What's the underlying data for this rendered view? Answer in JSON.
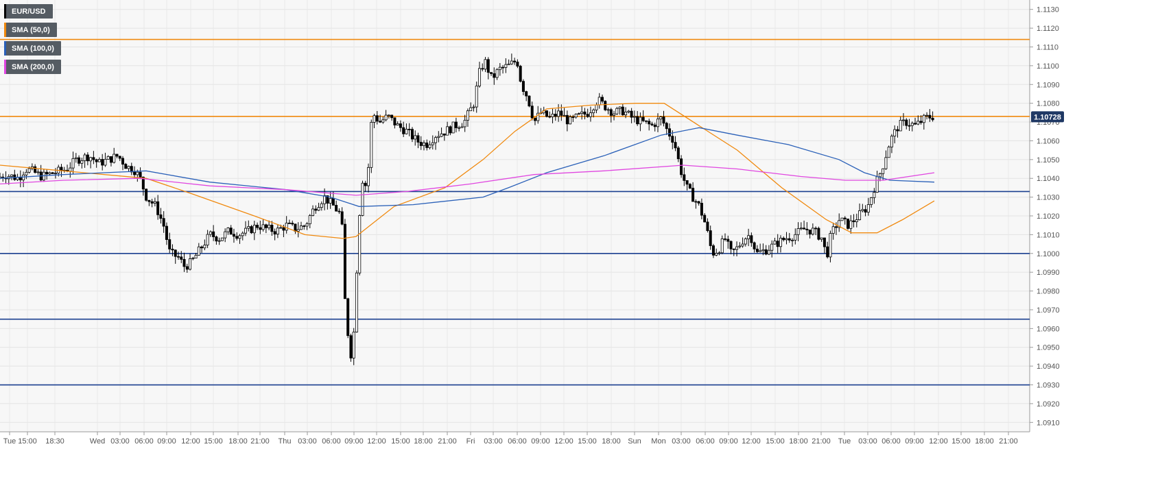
{
  "chart_data": {
    "type": "candlestick",
    "symbol": "EUR/USD",
    "ylim": [
      1.0905,
      1.1135
    ],
    "y_ticks": [
      "1.0910",
      "1.0920",
      "1.0930",
      "1.0940",
      "1.0950",
      "1.0960",
      "1.0970",
      "1.0980",
      "1.0990",
      "1.1000",
      "1.1010",
      "1.1020",
      "1.1030",
      "1.1040",
      "1.1050",
      "1.1060",
      "1.1070",
      "1.1080",
      "1.1090",
      "1.1100",
      "1.1110",
      "1.1120",
      "1.1130"
    ],
    "x_ticks": [
      "Tue",
      "15:00",
      "18:30",
      "Wed",
      "03:00",
      "06:00",
      "09:00",
      "12:00",
      "15:00",
      "18:00",
      "21:00",
      "Thu",
      "03:00",
      "06:00",
      "09:00",
      "12:00",
      "15:00",
      "18:00",
      "21:00",
      "Fri",
      "03:00",
      "06:00",
      "09:00",
      "12:00",
      "15:00",
      "18:00",
      "Sun",
      "Mon",
      "03:00",
      "06:00",
      "09:00",
      "12:00",
      "15:00",
      "18:00",
      "21:00",
      "Tue",
      "03:00",
      "06:00",
      "09:00",
      "12:00",
      "15:00",
      "18:00",
      "21:00"
    ],
    "current_price": "1.10728",
    "current_price_value": 1.10728,
    "horizontal_levels": [
      {
        "value": 1.1114,
        "color": "#f0890e"
      },
      {
        "value": 1.1073,
        "color": "#f0890e"
      },
      {
        "value": 1.1033,
        "color": "#1a3f8f"
      },
      {
        "value": 1.1,
        "color": "#1a3f8f"
      },
      {
        "value": 1.0965,
        "color": "#1a3f8f"
      },
      {
        "value": 1.093,
        "color": "#1a3f8f"
      }
    ],
    "price_path": [
      [
        0,
        1.104
      ],
      [
        12,
        1.1042
      ],
      [
        24,
        1.1041
      ],
      [
        34,
        1.104
      ],
      [
        44,
        1.1045
      ],
      [
        54,
        1.1044
      ],
      [
        70,
        1.1041
      ],
      [
        90,
        1.1043
      ],
      [
        110,
        1.1045
      ],
      [
        125,
        1.105
      ],
      [
        145,
        1.1052
      ],
      [
        160,
        1.1048
      ],
      [
        175,
        1.105
      ],
      [
        190,
        1.1052
      ],
      [
        205,
        1.1046
      ],
      [
        215,
        1.1045
      ],
      [
        225,
        1.104
      ],
      [
        235,
        1.103
      ],
      [
        250,
        1.1025
      ],
      [
        262,
        1.1015
      ],
      [
        272,
        1.1
      ],
      [
        285,
        1.0998
      ],
      [
        295,
        1.0993
      ],
      [
        305,
        1.0995
      ],
      [
        315,
        1.1
      ],
      [
        325,
        1.1005
      ],
      [
        335,
        1.101
      ],
      [
        350,
        1.1008
      ],
      [
        365,
        1.1012
      ],
      [
        380,
        1.101
      ],
      [
        395,
        1.1012
      ],
      [
        410,
        1.1015
      ],
      [
        425,
        1.1013
      ],
      [
        440,
        1.1012
      ],
      [
        455,
        1.1015
      ],
      [
        470,
        1.1013
      ],
      [
        485,
        1.1015
      ],
      [
        500,
        1.1025
      ],
      [
        515,
        1.103
      ],
      [
        530,
        1.1025
      ],
      [
        542,
        1.102
      ],
      [
        548,
        1.097
      ],
      [
        556,
        1.0945
      ],
      [
        562,
        1.096
      ],
      [
        568,
        1.101
      ],
      [
        574,
        1.104
      ],
      [
        582,
        1.1035
      ],
      [
        590,
        1.1075
      ],
      [
        602,
        1.107
      ],
      [
        615,
        1.1073
      ],
      [
        630,
        1.1068
      ],
      [
        645,
        1.1065
      ],
      [
        660,
        1.106
      ],
      [
        675,
        1.1058
      ],
      [
        690,
        1.1063
      ],
      [
        705,
        1.1065
      ],
      [
        720,
        1.1068
      ],
      [
        735,
        1.107
      ],
      [
        750,
        1.108
      ],
      [
        760,
        1.1098
      ],
      [
        768,
        1.1102
      ],
      [
        778,
        1.1093
      ],
      [
        790,
        1.1098
      ],
      [
        805,
        1.11
      ],
      [
        818,
        1.1103
      ],
      [
        825,
        1.109
      ],
      [
        835,
        1.1083
      ],
      [
        845,
        1.107
      ],
      [
        855,
        1.1075
      ],
      [
        870,
        1.1072
      ],
      [
        885,
        1.1075
      ],
      [
        900,
        1.107
      ],
      [
        915,
        1.1073
      ],
      [
        930,
        1.1075
      ],
      [
        945,
        1.1082
      ],
      [
        958,
        1.1078
      ],
      [
        970,
        1.1075
      ],
      [
        985,
        1.1076
      ],
      [
        1000,
        1.1072
      ],
      [
        1015,
        1.107
      ],
      [
        1030,
        1.1068
      ],
      [
        1045,
        1.1072
      ],
      [
        1055,
        1.1065
      ],
      [
        1065,
        1.106
      ],
      [
        1075,
        1.1045
      ],
      [
        1085,
        1.1035
      ],
      [
        1095,
        1.103
      ],
      [
        1105,
        1.1025
      ],
      [
        1115,
        1.1015
      ],
      [
        1125,
        1.1
      ],
      [
        1135,
        1.1002
      ],
      [
        1145,
        1.1008
      ],
      [
        1155,
        1.1
      ],
      [
        1165,
        1.1003
      ],
      [
        1175,
        1.1008
      ],
      [
        1185,
        1.101
      ],
      [
        1195,
        1.1
      ],
      [
        1210,
        1.1002
      ],
      [
        1225,
        1.1005
      ],
      [
        1240,
        1.1008
      ],
      [
        1255,
        1.101
      ],
      [
        1270,
        1.1013
      ],
      [
        1285,
        1.1012
      ],
      [
        1298,
        1.1008
      ],
      [
        1305,
        1.0998
      ],
      [
        1312,
        1.101
      ],
      [
        1325,
        1.1018
      ],
      [
        1340,
        1.1015
      ],
      [
        1355,
        1.102
      ],
      [
        1370,
        1.1025
      ],
      [
        1380,
        1.1035
      ],
      [
        1392,
        1.1045
      ],
      [
        1405,
        1.106
      ],
      [
        1418,
        1.1068
      ],
      [
        1430,
        1.107
      ],
      [
        1445,
        1.1068
      ],
      [
        1460,
        1.1072
      ],
      [
        1470,
        1.1073
      ]
    ],
    "series": [
      {
        "name": "SMA (50,0)",
        "color": "#f0890e",
        "points": [
          [
            0,
            1.1047
          ],
          [
            100,
            1.1044
          ],
          [
            230,
            1.104
          ],
          [
            300,
            1.1032
          ],
          [
            400,
            1.102
          ],
          [
            480,
            1.101
          ],
          [
            540,
            1.1008
          ],
          [
            560,
            1.1009
          ],
          [
            620,
            1.1025
          ],
          [
            700,
            1.1035
          ],
          [
            760,
            1.105
          ],
          [
            810,
            1.1065
          ],
          [
            860,
            1.1077
          ],
          [
            930,
            1.1079
          ],
          [
            1000,
            1.108
          ],
          [
            1045,
            1.108
          ],
          [
            1100,
            1.1068
          ],
          [
            1160,
            1.1055
          ],
          [
            1230,
            1.1035
          ],
          [
            1300,
            1.1018
          ],
          [
            1340,
            1.1011
          ],
          [
            1380,
            1.1011
          ],
          [
            1420,
            1.1018
          ],
          [
            1470,
            1.1028
          ]
        ]
      },
      {
        "name": "SMA (100,0)",
        "color": "#2a60b8",
        "points": [
          [
            0,
            1.104
          ],
          [
            100,
            1.1042
          ],
          [
            230,
            1.1044
          ],
          [
            330,
            1.1038
          ],
          [
            450,
            1.1034
          ],
          [
            520,
            1.103
          ],
          [
            565,
            1.1025
          ],
          [
            650,
            1.1026
          ],
          [
            760,
            1.103
          ],
          [
            800,
            1.1035
          ],
          [
            860,
            1.1043
          ],
          [
            950,
            1.1052
          ],
          [
            1040,
            1.1063
          ],
          [
            1100,
            1.1067
          ],
          [
            1160,
            1.1063
          ],
          [
            1240,
            1.1058
          ],
          [
            1320,
            1.105
          ],
          [
            1360,
            1.1043
          ],
          [
            1400,
            1.1039
          ],
          [
            1470,
            1.1038
          ]
        ]
      },
      {
        "name": "SMA (200,0)",
        "color": "#e046e0",
        "points": [
          [
            0,
            1.1037
          ],
          [
            100,
            1.1039
          ],
          [
            220,
            1.104
          ],
          [
            330,
            1.1036
          ],
          [
            450,
            1.1034
          ],
          [
            560,
            1.1031
          ],
          [
            640,
            1.1033
          ],
          [
            740,
            1.1037
          ],
          [
            840,
            1.1042
          ],
          [
            950,
            1.1044
          ],
          [
            1075,
            1.1047
          ],
          [
            1160,
            1.1045
          ],
          [
            1260,
            1.1041
          ],
          [
            1330,
            1.1039
          ],
          [
            1390,
            1.1039
          ],
          [
            1470,
            1.1043
          ]
        ]
      }
    ]
  },
  "legend": [
    {
      "label": "EUR/USD",
      "color": "#000000"
    },
    {
      "label": "SMA (50,0)",
      "color": "#f0890e"
    },
    {
      "label": "SMA (100,0)",
      "color": "#2a60b8"
    },
    {
      "label": "SMA (200,0)",
      "color": "#e046e0"
    }
  ]
}
